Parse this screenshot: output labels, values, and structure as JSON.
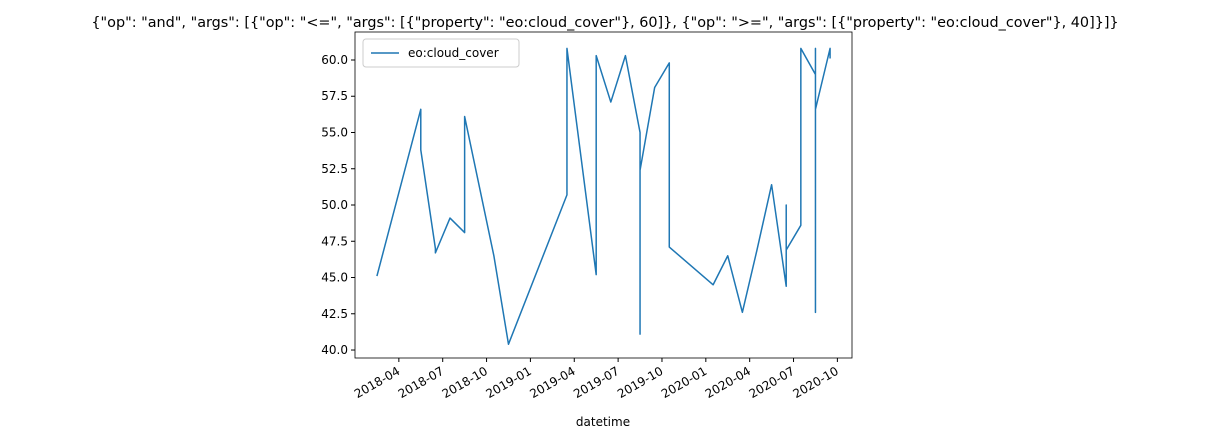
{
  "chart_data": {
    "type": "line",
    "title": "{\"op\": \"and\", \"args\": [{\"op\": \"<=\", \"args\": [{\"property\": \"eo:cloud_cover\"}, 60]}, {\"op\": \">=\", \"args\": [{\"property\": \"eo:cloud_cover\"}, 40]}]}",
    "x_label": "datetime",
    "x": [
      "2018-02",
      "2018-05",
      "2018-05",
      "2018-06",
      "2018-06",
      "2018-07",
      "2018-08",
      "2018-08",
      "2018-10",
      "2018-11",
      "2019-03",
      "2019-03",
      "2019-05",
      "2019-05",
      "2019-06",
      "2019-07",
      "2019-08",
      "2019-08",
      "2019-08",
      "2019-09",
      "2019-10",
      "2019-10",
      "2020-01",
      "2020-02",
      "2020-03",
      "2020-04",
      "2020-05",
      "2020-06",
      "2020-06",
      "2020-06",
      "2020-07",
      "2020-07",
      "2020-08",
      "2020-08",
      "2020-08",
      "2020-08",
      "2020-09",
      "2020-09"
    ],
    "series": [
      {
        "name": "eo:cloud_cover",
        "color": "#1f77b4",
        "values": [
          45.1,
          56.6,
          53.8,
          47.0,
          46.7,
          49.1,
          48.1,
          56.1,
          46.5,
          40.4,
          50.7,
          60.8,
          45.2,
          60.3,
          57.1,
          60.3,
          55.0,
          41.1,
          52.4,
          58.1,
          59.8,
          47.1,
          44.5,
          46.5,
          42.6,
          46.9,
          51.4,
          44.4,
          50.0,
          46.9,
          48.6,
          60.8,
          59.0,
          42.6,
          60.8,
          56.6,
          60.8,
          60.1
        ]
      }
    ],
    "xlim": [
      "2018-01",
      "2020-10"
    ],
    "xticks": [
      "2018-04",
      "2018-07",
      "2018-10",
      "2019-01",
      "2019-04",
      "2019-07",
      "2019-10",
      "2020-01",
      "2020-04",
      "2020-07",
      "2020-10"
    ],
    "ylim": [
      39.45,
      61.93
    ],
    "yticks": [
      {
        "value": 40,
        "label": "40.0"
      },
      42.5,
      {
        "value": 45,
        "label": "45.0"
      },
      47.5,
      {
        "value": 50,
        "label": "50.0"
      },
      52.5,
      {
        "value": 55,
        "label": "55.0"
      },
      57.5,
      {
        "value": 60,
        "label": "60.0"
      }
    ],
    "legend": "upper left",
    "grid": false
  }
}
